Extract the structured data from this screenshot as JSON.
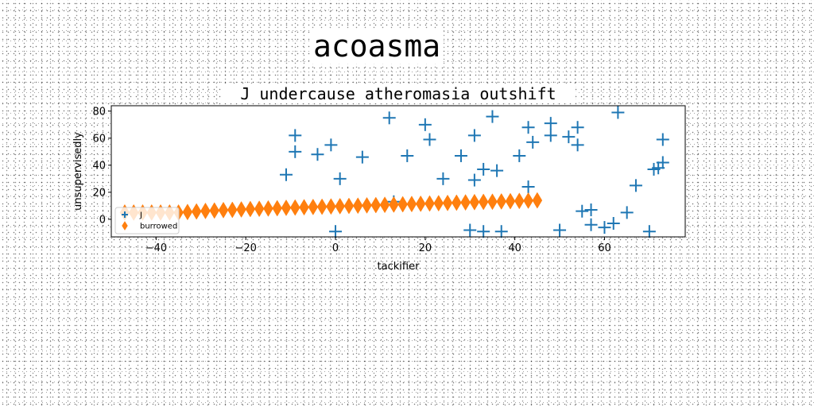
{
  "figure": {
    "title": "acoasma"
  },
  "colors": {
    "series_j": "#1f77b4",
    "series_burrowed": "#ff7f0e",
    "background": "#ffffff"
  },
  "chart_data": {
    "type": "scatter",
    "title": "J undercause atheromasia outshift",
    "xlabel": "tackifier",
    "ylabel": "unsupervisedly",
    "xlim": [
      -50,
      78
    ],
    "ylim": [
      -13,
      84
    ],
    "xticks": [
      -40,
      -20,
      0,
      20,
      40,
      60
    ],
    "yticks": [
      0,
      20,
      40,
      60,
      80
    ],
    "grid": false,
    "legend_position": "lower-left",
    "series": [
      {
        "name": "J",
        "marker": "plus",
        "color": "#1f77b4",
        "points": [
          [
            -11,
            33
          ],
          [
            -9,
            62
          ],
          [
            -9,
            50
          ],
          [
            -4,
            48
          ],
          [
            -1,
            55
          ],
          [
            0,
            -9
          ],
          [
            1,
            30
          ],
          [
            6,
            46
          ],
          [
            12,
            75
          ],
          [
            13,
            13
          ],
          [
            16,
            47
          ],
          [
            20,
            70
          ],
          [
            21,
            59
          ],
          [
            24,
            30
          ],
          [
            28,
            47
          ],
          [
            30,
            -8
          ],
          [
            31,
            29
          ],
          [
            31,
            62
          ],
          [
            33,
            37
          ],
          [
            33,
            -9
          ],
          [
            35,
            76
          ],
          [
            36,
            36
          ],
          [
            37,
            -9
          ],
          [
            41,
            47
          ],
          [
            43,
            68
          ],
          [
            43,
            24
          ],
          [
            44,
            57
          ],
          [
            48,
            71
          ],
          [
            48,
            62
          ],
          [
            50,
            -8
          ],
          [
            52,
            61
          ],
          [
            54,
            68
          ],
          [
            54,
            55
          ],
          [
            55,
            6
          ],
          [
            57,
            -4
          ],
          [
            57,
            7
          ],
          [
            60,
            -6
          ],
          [
            62,
            -3
          ],
          [
            63,
            79
          ],
          [
            65,
            5
          ],
          [
            67,
            25
          ],
          [
            70,
            -9
          ],
          [
            71,
            37
          ],
          [
            72,
            38
          ],
          [
            73,
            59
          ],
          [
            73,
            42
          ]
        ]
      },
      {
        "name": "burrowed",
        "marker": "thin_diamond",
        "color": "#ff7f0e",
        "points": [
          [
            -47,
            5
          ],
          [
            -45,
            5
          ],
          [
            -43,
            5
          ],
          [
            -41,
            5
          ],
          [
            -39,
            5
          ],
          [
            -37,
            5
          ],
          [
            -35,
            5
          ],
          [
            -33,
            5.4
          ],
          [
            -31,
            5.8
          ],
          [
            -29,
            6.2
          ],
          [
            -27,
            6.5
          ],
          [
            -25,
            6.8
          ],
          [
            -23,
            7.0
          ],
          [
            -21,
            7.3
          ],
          [
            -19,
            7.6
          ],
          [
            -17,
            7.8
          ],
          [
            -15,
            8.0
          ],
          [
            -13,
            8.2
          ],
          [
            -11,
            8.5
          ],
          [
            -9,
            8.7
          ],
          [
            -7,
            8.9
          ],
          [
            -5,
            9.1
          ],
          [
            -3,
            9.3
          ],
          [
            -1,
            9.5
          ],
          [
            1,
            9.7
          ],
          [
            3,
            9.9
          ],
          [
            5,
            10.1
          ],
          [
            7,
            10.3
          ],
          [
            9,
            10.5
          ],
          [
            11,
            10.7
          ],
          [
            13,
            10.9
          ],
          [
            15,
            11.1
          ],
          [
            17,
            11.3
          ],
          [
            19,
            11.5
          ],
          [
            21,
            11.7
          ],
          [
            23,
            11.9
          ],
          [
            25,
            12.1
          ],
          [
            27,
            12.3
          ],
          [
            29,
            12.5
          ],
          [
            31,
            12.7
          ],
          [
            33,
            12.9
          ],
          [
            35,
            13.0
          ],
          [
            37,
            13.2
          ],
          [
            39,
            13.4
          ],
          [
            41,
            13.6
          ],
          [
            43,
            13.8
          ],
          [
            45,
            14.0
          ]
        ]
      }
    ]
  }
}
